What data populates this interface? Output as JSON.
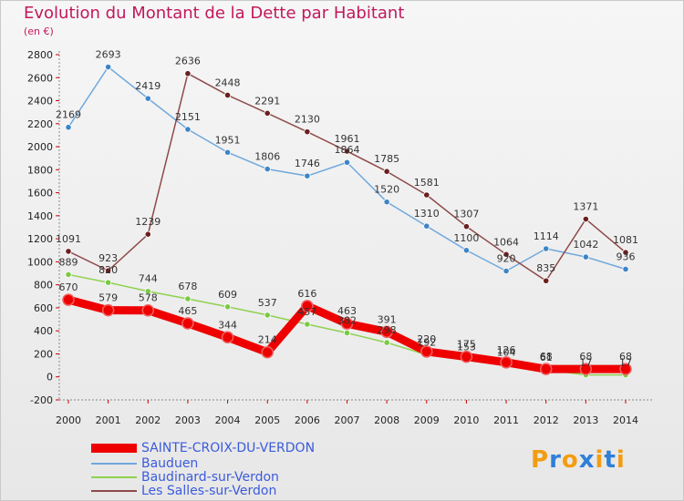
{
  "header": {
    "title": "Evolution du Montant de la Dette par Habitant",
    "unit": "(en €)"
  },
  "logo": {
    "text": "Proxiti",
    "colors": [
      "#f39c12",
      "#2f7fd8",
      "#f39c12",
      "#2f7fd8",
      "#f39c12",
      "#2f7fd8",
      "#f39c12"
    ]
  },
  "chart_data": {
    "type": "line",
    "title": "Evolution du Montant de la Dette par Habitant",
    "ylabel": "(en €)",
    "xlabel": "",
    "ylim": [
      -200,
      2800
    ],
    "yticks": [
      -200,
      0,
      200,
      400,
      600,
      800,
      1000,
      1200,
      1400,
      1600,
      1800,
      2000,
      2200,
      2400,
      2600,
      2800
    ],
    "categories": [
      "2000",
      "2001",
      "2002",
      "2003",
      "2004",
      "2005",
      "2006",
      "2007",
      "2008",
      "2009",
      "2010",
      "2011",
      "2012",
      "2013",
      "2014"
    ],
    "grid": false,
    "legend_position": "bottom-left",
    "series": [
      {
        "name": "SAINTE-CROIX-DU-VERDON",
        "values": [
          670,
          579,
          578,
          465,
          344,
          214,
          616,
          463,
          391,
          220,
          175,
          126,
          68,
          68,
          68
        ],
        "labels": [
          "670",
          "579",
          "578",
          "465",
          "344",
          "214",
          "616",
          "463",
          "391",
          "220",
          "175",
          "126",
          "68",
          "68",
          "68"
        ],
        "color": "#ee0000",
        "marker": "#ee0000",
        "thick": true
      },
      {
        "name": "Bauduen",
        "values": [
          2169,
          2693,
          2419,
          2151,
          1951,
          1806,
          1746,
          1864,
          1520,
          1310,
          1100,
          920,
          1114,
          1042,
          936
        ],
        "labels": [
          "2169",
          "2693",
          "2419",
          "2151",
          "1951",
          "1806",
          "1746",
          "1864",
          "1520",
          "1310",
          "1100",
          "920",
          "1114",
          "1042",
          "936"
        ],
        "color": "#6fa8dc",
        "marker": "#3d85c6",
        "thick": false
      },
      {
        "name": "Baudinard-sur-Verdon",
        "values": [
          889,
          820,
          744,
          678,
          609,
          537,
          457,
          382,
          298,
          192,
          153,
          104,
          61,
          17,
          17
        ],
        "labels": [
          "889",
          "820",
          "744",
          "678",
          "609",
          "537",
          "457",
          "382",
          "298",
          "192",
          "153",
          "104",
          "61",
          "17",
          "17"
        ],
        "color": "#8fd14f",
        "marker": "#7ac943",
        "thick": false
      },
      {
        "name": "Les Salles-sur-Verdon",
        "values": [
          1091,
          923,
          1239,
          2636,
          2448,
          2291,
          2130,
          1961,
          1785,
          1581,
          1307,
          1064,
          835,
          1371,
          1081
        ],
        "labels": [
          "1091",
          "923",
          "1239",
          "2636",
          "2448",
          "2291",
          "2130",
          "1961",
          "1785",
          "1581",
          "1307",
          "1064",
          "835",
          "1371",
          "1081"
        ],
        "color": "#8e4a4a",
        "marker": "#6b1f1f",
        "thick": false
      }
    ]
  }
}
